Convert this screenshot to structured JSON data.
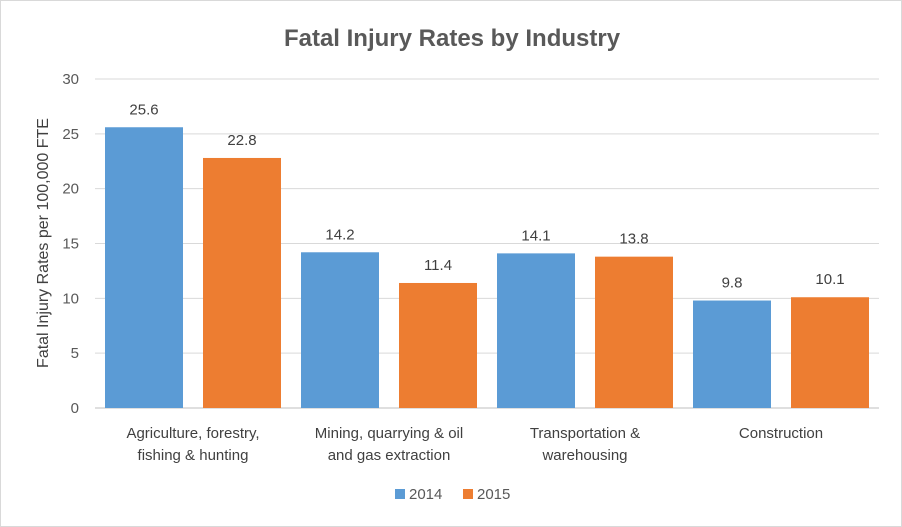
{
  "chart_data": {
    "type": "bar",
    "title": "Fatal Injury Rates by Industry",
    "xlabel": "",
    "ylabel": "Fatal Injury Rates per 100,000 FTE",
    "ylim": [
      0,
      30
    ],
    "yticks": [
      0,
      5,
      10,
      15,
      20,
      25,
      30
    ],
    "grid": true,
    "legend_position": "bottom",
    "categories": [
      [
        "Agriculture, forestry,",
        "fishing & hunting"
      ],
      [
        "Mining, quarrying & oil",
        "and gas extraction"
      ],
      [
        "Transportation &",
        "warehousing"
      ],
      [
        "Construction"
      ]
    ],
    "series": [
      {
        "name": "2014",
        "color": "#5b9bd5",
        "values": [
          25.6,
          14.2,
          14.1,
          9.8
        ]
      },
      {
        "name": "2015",
        "color": "#ed7d31",
        "values": [
          22.8,
          11.4,
          13.8,
          10.1
        ]
      }
    ]
  }
}
